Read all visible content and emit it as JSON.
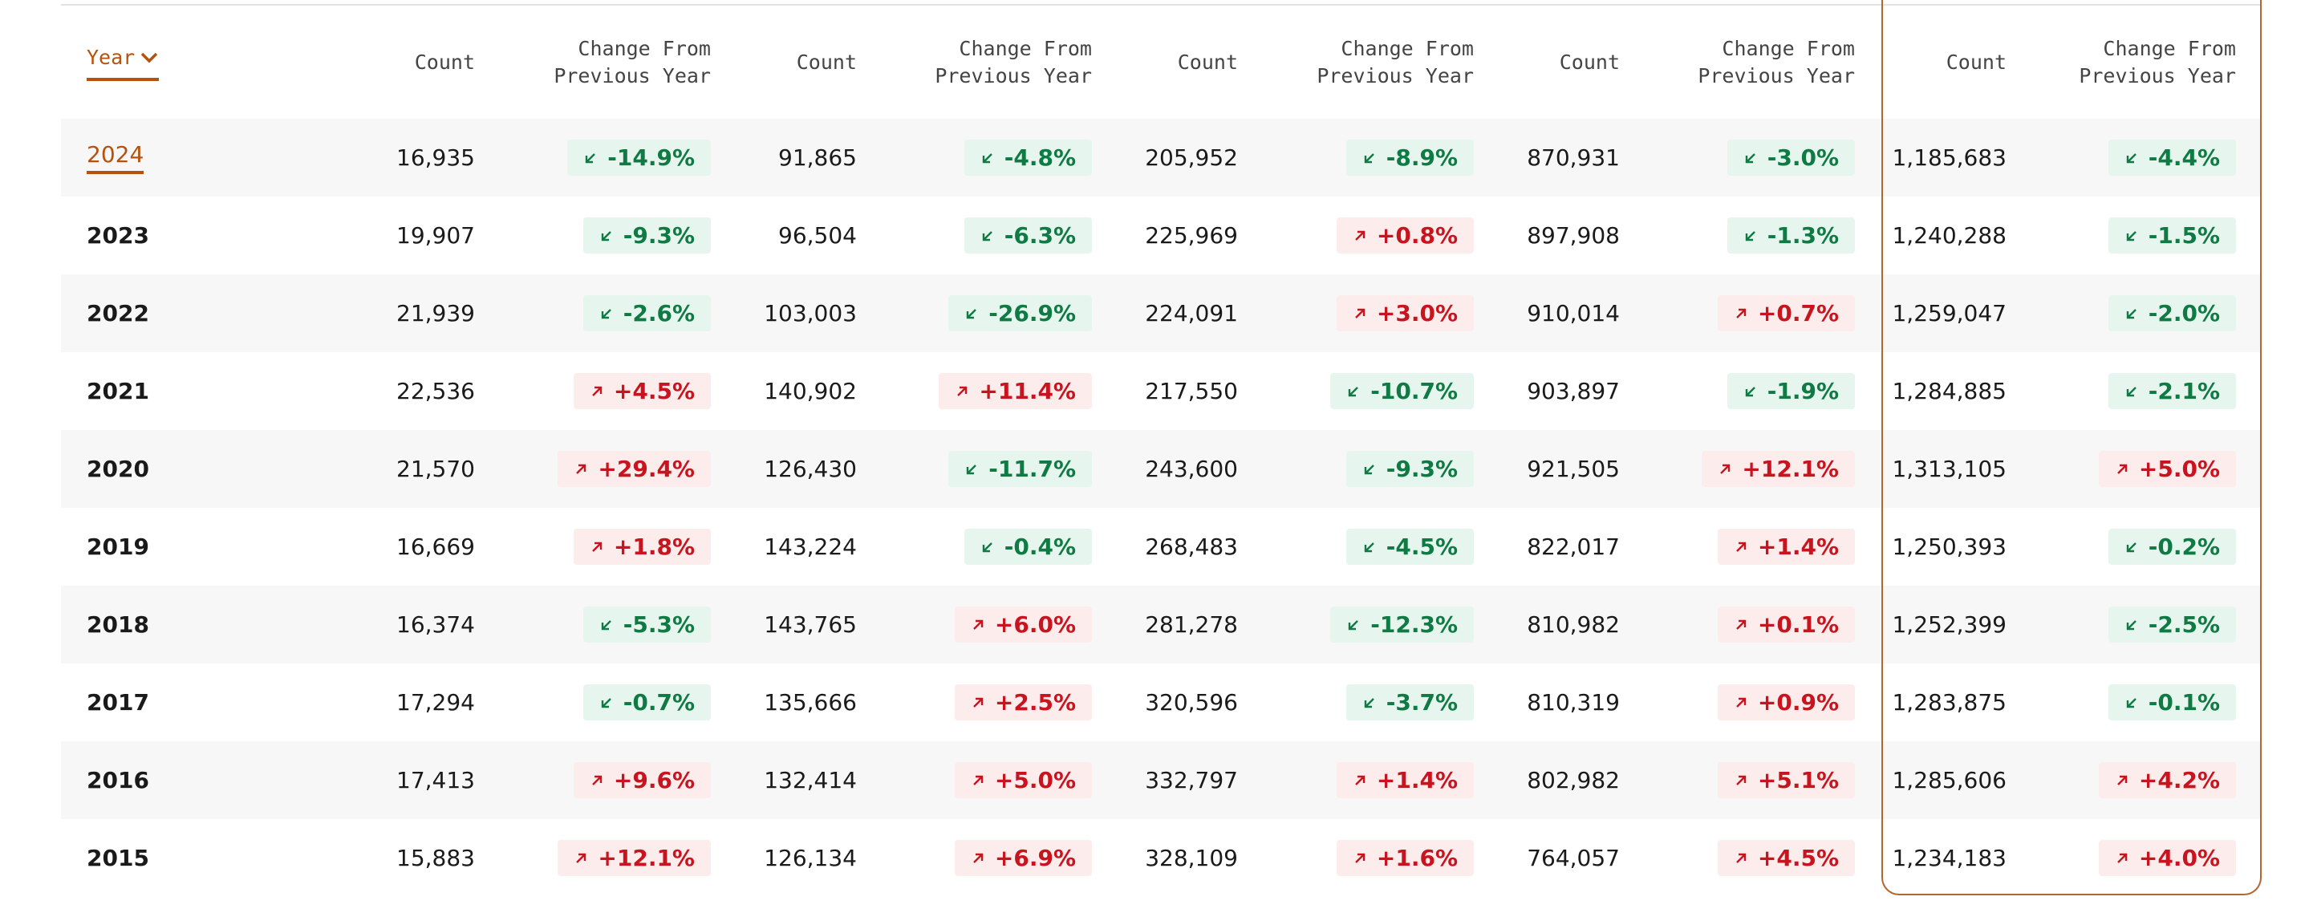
{
  "table": {
    "header": [
      "Year",
      "Count",
      "Change From Previous Year",
      "Count",
      "Change From Previous Year",
      "Count",
      "Change From Previous Year",
      "Count",
      "Change From Previous Year",
      "Count",
      "Change From Previous Year"
    ],
    "rows": [
      [
        "2024",
        "16,935",
        "-14.9%",
        "91,865",
        "-4.8%",
        "205,952",
        "-8.9%",
        "870,931",
        "-3.0%",
        "1,185,683",
        "-4.4%"
      ],
      [
        "2023",
        "19,907",
        "-9.3%",
        "96,504",
        "-6.3%",
        "225,969",
        "+0.8%",
        "897,908",
        "-1.3%",
        "1,240,288",
        "-1.5%"
      ],
      [
        "2022",
        "21,939",
        "-2.6%",
        "103,003",
        "-26.9%",
        "224,091",
        "+3.0%",
        "910,014",
        "+0.7%",
        "1,259,047",
        "-2.0%"
      ],
      [
        "2021",
        "22,536",
        "+4.5%",
        "140,902",
        "+11.4%",
        "217,550",
        "-10.7%",
        "903,897",
        "-1.9%",
        "1,284,885",
        "-2.1%"
      ],
      [
        "2020",
        "21,570",
        "+29.4%",
        "126,430",
        "-11.7%",
        "243,600",
        "-9.3%",
        "921,505",
        "+12.1%",
        "1,313,105",
        "+5.0%"
      ],
      [
        "2019",
        "16,669",
        "+1.8%",
        "143,224",
        "-0.4%",
        "268,483",
        "-4.5%",
        "822,017",
        "+1.4%",
        "1,250,393",
        "-0.2%"
      ],
      [
        "2018",
        "16,374",
        "-5.3%",
        "143,765",
        "+6.0%",
        "281,278",
        "-12.3%",
        "810,982",
        "+0.1%",
        "1,252,399",
        "-2.5%"
      ],
      [
        "2017",
        "17,294",
        "-0.7%",
        "135,666",
        "+2.5%",
        "320,596",
        "-3.7%",
        "810,319",
        "+0.9%",
        "1,283,875",
        "-0.1%"
      ],
      [
        "2016",
        "17,413",
        "+9.6%",
        "132,414",
        "+5.0%",
        "332,797",
        "+1.4%",
        "802,982",
        "+5.1%",
        "1,285,606",
        "+4.2%"
      ],
      [
        "2015",
        "15,883",
        "+12.1%",
        "126,134",
        "+6.9%",
        "328,109",
        "+1.6%",
        "764,057",
        "+4.5%",
        "1,234,183",
        "+4.0%"
      ]
    ]
  }
}
